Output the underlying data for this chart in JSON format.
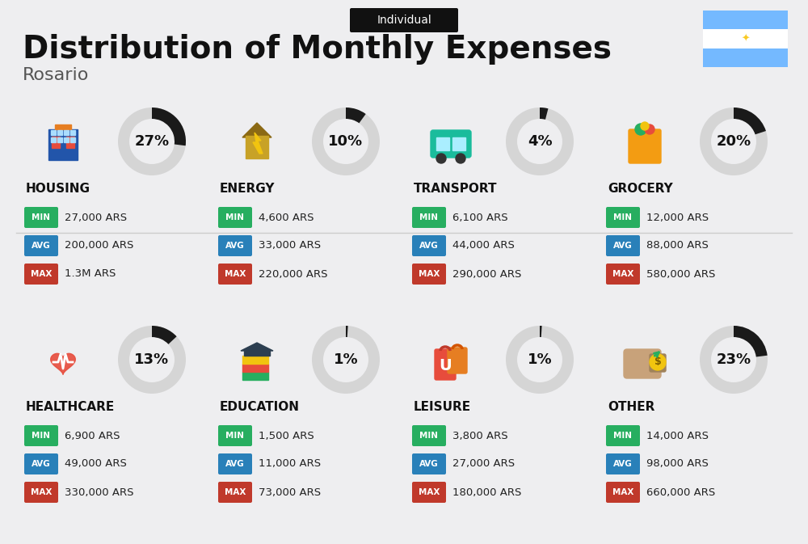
{
  "title_tag": "Individual",
  "title": "Distribution of Monthly Expenses",
  "subtitle": "Rosario",
  "background_color": "#eeeef0",
  "categories": [
    {
      "name": "HOUSING",
      "pct": 27,
      "min": "27,000 ARS",
      "avg": "200,000 ARS",
      "max": "1.3M ARS",
      "row": 0,
      "col": 0
    },
    {
      "name": "ENERGY",
      "pct": 10,
      "min": "4,600 ARS",
      "avg": "33,000 ARS",
      "max": "220,000 ARS",
      "row": 0,
      "col": 1
    },
    {
      "name": "TRANSPORT",
      "pct": 4,
      "min": "6,100 ARS",
      "avg": "44,000 ARS",
      "max": "290,000 ARS",
      "row": 0,
      "col": 2
    },
    {
      "name": "GROCERY",
      "pct": 20,
      "min": "12,000 ARS",
      "avg": "88,000 ARS",
      "max": "580,000 ARS",
      "row": 0,
      "col": 3
    },
    {
      "name": "HEALTHCARE",
      "pct": 13,
      "min": "6,900 ARS",
      "avg": "49,000 ARS",
      "max": "330,000 ARS",
      "row": 1,
      "col": 0
    },
    {
      "name": "EDUCATION",
      "pct": 1,
      "min": "1,500 ARS",
      "avg": "11,000 ARS",
      "max": "73,000 ARS",
      "row": 1,
      "col": 1
    },
    {
      "name": "LEISURE",
      "pct": 1,
      "min": "3,800 ARS",
      "avg": "27,000 ARS",
      "max": "180,000 ARS",
      "row": 1,
      "col": 2
    },
    {
      "name": "OTHER",
      "pct": 23,
      "min": "14,000 ARS",
      "avg": "98,000 ARS",
      "max": "660,000 ARS",
      "row": 1,
      "col": 3
    }
  ],
  "label_colors": {
    "MIN": "#27ae60",
    "AVG": "#2980b9",
    "MAX": "#c0392b"
  },
  "arc_color": "#1a1a1a",
  "arc_remaining": "#d5d5d5",
  "flag_blue": "#74b9ff",
  "flag_sun": "#f9ca24",
  "tag_bg": "#111111",
  "title_color": "#111111",
  "subtitle_color": "#555555",
  "divider_color": "#cccccc"
}
